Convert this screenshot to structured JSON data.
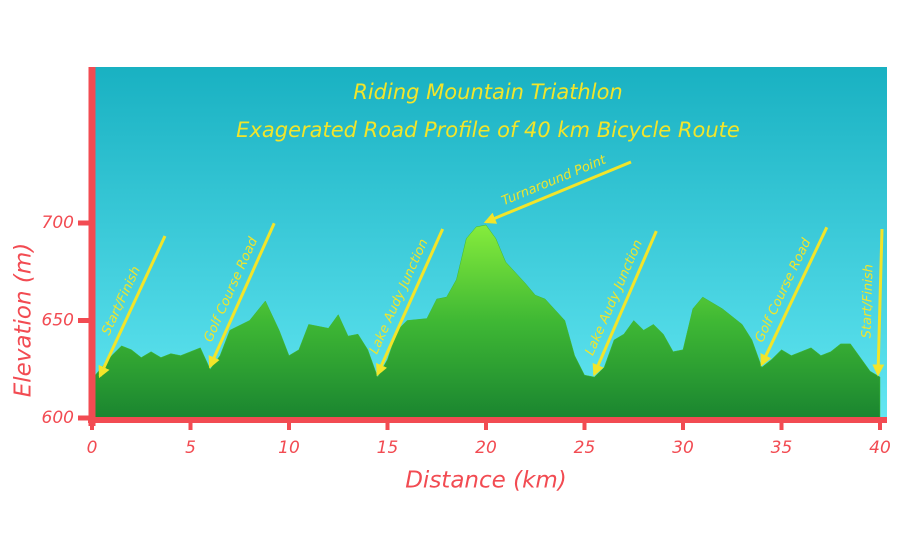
{
  "chart_data": {
    "type": "area",
    "title": "Riding Mountain Triathlon",
    "subtitle": "Exagerated Road Profile of 40 km Bicycle Route",
    "x_label": "Distance (km)",
    "y_label": "Elevation (m)",
    "x": [
      0,
      1,
      1.5,
      2,
      2.5,
      3,
      3.5,
      4,
      4.5,
      5,
      5.5,
      6,
      6.5,
      7,
      8,
      8.8,
      9.5,
      10,
      10.5,
      11,
      12,
      12.5,
      13,
      13.5,
      14,
      14.5,
      15,
      15.5,
      16,
      17,
      17.5,
      18,
      18.5,
      19,
      19.5,
      20,
      20.5,
      21,
      22,
      22.5,
      23,
      24,
      24.5,
      25,
      25.5,
      26,
      26.5,
      27,
      27.5,
      28,
      28.5,
      29,
      29.5,
      30,
      30.5,
      31,
      32,
      33,
      33.5,
      34,
      34.5,
      35,
      35.5,
      36,
      36.5,
      37,
      37.5,
      38,
      38.5,
      39,
      39.5,
      40
    ],
    "values": [
      620,
      632,
      637,
      635,
      631,
      634,
      631,
      633,
      632,
      634,
      636,
      625,
      632,
      645,
      650,
      660,
      645,
      632,
      635,
      648,
      646,
      653,
      642,
      643,
      635,
      621,
      630,
      645,
      650,
      651,
      661,
      662,
      671,
      692,
      698,
      699,
      692,
      680,
      669,
      663,
      661,
      650,
      632,
      622,
      621,
      626,
      640,
      643,
      650,
      645,
      648,
      643,
      634,
      635,
      656,
      662,
      656,
      648,
      640,
      626,
      630,
      635,
      632,
      634,
      636,
      632,
      634,
      638,
      638,
      631,
      624,
      621
    ],
    "color": "#3fb834",
    "xlim": [
      0,
      40
    ],
    "xticks": [
      0,
      5,
      10,
      15,
      20,
      25,
      30,
      35,
      40
    ],
    "ylim": [
      600,
      780
    ],
    "yticks": [
      600,
      650,
      700
    ],
    "annotations": [
      {
        "text": "Start/Finish",
        "x": 0
      },
      {
        "text": "Golf Course Road",
        "x": 6
      },
      {
        "text": "Lake Audy Junction",
        "x": 14.5
      },
      {
        "text": "Turnaround Point",
        "x": 20
      },
      {
        "text": "Lake Audy Junction",
        "x": 25.5
      },
      {
        "text": "Golf Course Road",
        "x": 34
      },
      {
        "text": "Start/Finish",
        "x": 40
      }
    ]
  }
}
